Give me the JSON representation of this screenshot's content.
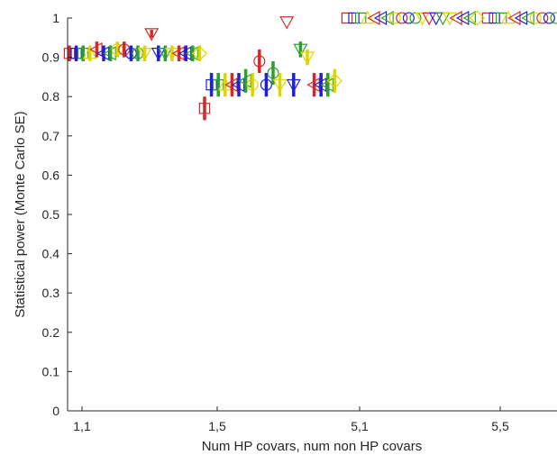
{
  "chart_data": {
    "type": "scatter",
    "title": "",
    "xlabel": "Num HP covars, num non HP covars",
    "ylabel": "Statistical power (Monte Carlo SE)",
    "categories": [
      "1,1",
      "1,5",
      "5,1",
      "5,5"
    ],
    "ylim": [
      0,
      1
    ],
    "yticks": [
      0,
      0.1,
      0.2,
      0.3,
      0.4,
      0.5,
      0.6,
      0.7,
      0.8,
      0.9,
      1
    ],
    "ytick_labels": [
      "0",
      "0.1",
      "0.2",
      "0.3",
      "0.4",
      "0.5",
      "0.6",
      "0.7",
      "0.8",
      "0.9",
      "1"
    ],
    "grid": false,
    "legend": "none",
    "series": [
      {
        "marker": "square",
        "color": "#d62728",
        "values": [
          0.91,
          0.77,
          1.0,
          1.0
        ],
        "se": [
          0.02,
          0.03,
          0,
          0
        ]
      },
      {
        "marker": "square",
        "color": "#1f1fd6",
        "values": [
          0.91,
          0.83,
          1.0,
          1.0
        ],
        "se": [
          0.02,
          0.03,
          0,
          0
        ]
      },
      {
        "marker": "square",
        "color": "#2ca02c",
        "values": [
          0.91,
          0.83,
          1.0,
          1.0
        ],
        "se": [
          0.02,
          0.03,
          0,
          0
        ]
      },
      {
        "marker": "triangle-up",
        "color": "#e0d400",
        "values": [
          0.91,
          0.83,
          1.0,
          1.0
        ],
        "se": [
          0.02,
          0.03,
          0,
          0
        ]
      },
      {
        "marker": "triangle-left",
        "color": "#d62728",
        "values": [
          0.92,
          0.83,
          1.0,
          1.0
        ],
        "se": [
          0.02,
          0.03,
          0,
          0
        ]
      },
      {
        "marker": "triangle-left",
        "color": "#1f1fd6",
        "values": [
          0.91,
          0.83,
          1.0,
          1.0
        ],
        "se": [
          0.02,
          0.03,
          0,
          0
        ]
      },
      {
        "marker": "triangle-left",
        "color": "#2ca02c",
        "values": [
          0.91,
          0.84,
          1.0,
          1.0
        ],
        "se": [
          0.02,
          0.03,
          0,
          0
        ]
      },
      {
        "marker": "circle",
        "color": "#e0d400",
        "values": [
          0.92,
          0.83,
          1.0,
          1.0
        ],
        "se": [
          0.02,
          0.03,
          0,
          0
        ]
      },
      {
        "marker": "circle",
        "color": "#d62728",
        "values": [
          0.92,
          0.89,
          1.0,
          1.0
        ],
        "se": [
          0.02,
          0.03,
          0,
          0
        ]
      },
      {
        "marker": "circle",
        "color": "#1f1fd6",
        "values": [
          0.91,
          0.83,
          1.0,
          1.0
        ],
        "se": [
          0.02,
          0.03,
          0,
          0
        ]
      },
      {
        "marker": "circle",
        "color": "#2ca02c",
        "values": [
          0.91,
          0.86,
          1.0,
          1.0
        ],
        "se": [
          0.02,
          0.03,
          0,
          0
        ]
      },
      {
        "marker": "triangle-down",
        "color": "#e0d400",
        "values": [
          0.91,
          0.83,
          1.0,
          1.0
        ],
        "se": [
          0.02,
          0.03,
          0,
          0
        ]
      },
      {
        "marker": "triangle-down",
        "color": "#d62728",
        "values": [
          0.96,
          0.99,
          1.0,
          1.0
        ],
        "se": [
          0.01,
          0.0,
          0,
          0
        ]
      },
      {
        "marker": "triangle-down",
        "color": "#1f1fd6",
        "values": [
          0.91,
          0.83,
          1.0,
          1.0
        ],
        "se": [
          0.02,
          0.03,
          0,
          0
        ]
      },
      {
        "marker": "triangle-down",
        "color": "#2ca02c",
        "values": [
          0.91,
          0.92,
          1.0,
          1.0
        ],
        "se": [
          0.02,
          0.02,
          0,
          0
        ]
      },
      {
        "marker": "triangle-down",
        "color": "#e0d400",
        "values": [
          0.91,
          0.9,
          1.0,
          1.0
        ],
        "se": [
          0.02,
          0.02,
          0,
          0
        ]
      },
      {
        "marker": "triangle-left",
        "color": "#d62728",
        "values": [
          0.91,
          0.83,
          1.0,
          1.0
        ],
        "se": [
          0.02,
          0.03,
          0,
          0
        ]
      },
      {
        "marker": "triangle-left",
        "color": "#1f1fd6",
        "values": [
          0.91,
          0.83,
          1.0,
          1.0
        ],
        "se": [
          0.02,
          0.03,
          0,
          0
        ]
      },
      {
        "marker": "triangle-left",
        "color": "#2ca02c",
        "values": [
          0.91,
          0.83,
          1.0,
          1.0
        ],
        "se": [
          0.02,
          0.03,
          0,
          0
        ]
      },
      {
        "marker": "diamond",
        "color": "#e0d400",
        "values": [
          0.91,
          0.84,
          1.0,
          1.0
        ],
        "se": [
          0.02,
          0.03,
          0,
          0
        ]
      }
    ]
  }
}
